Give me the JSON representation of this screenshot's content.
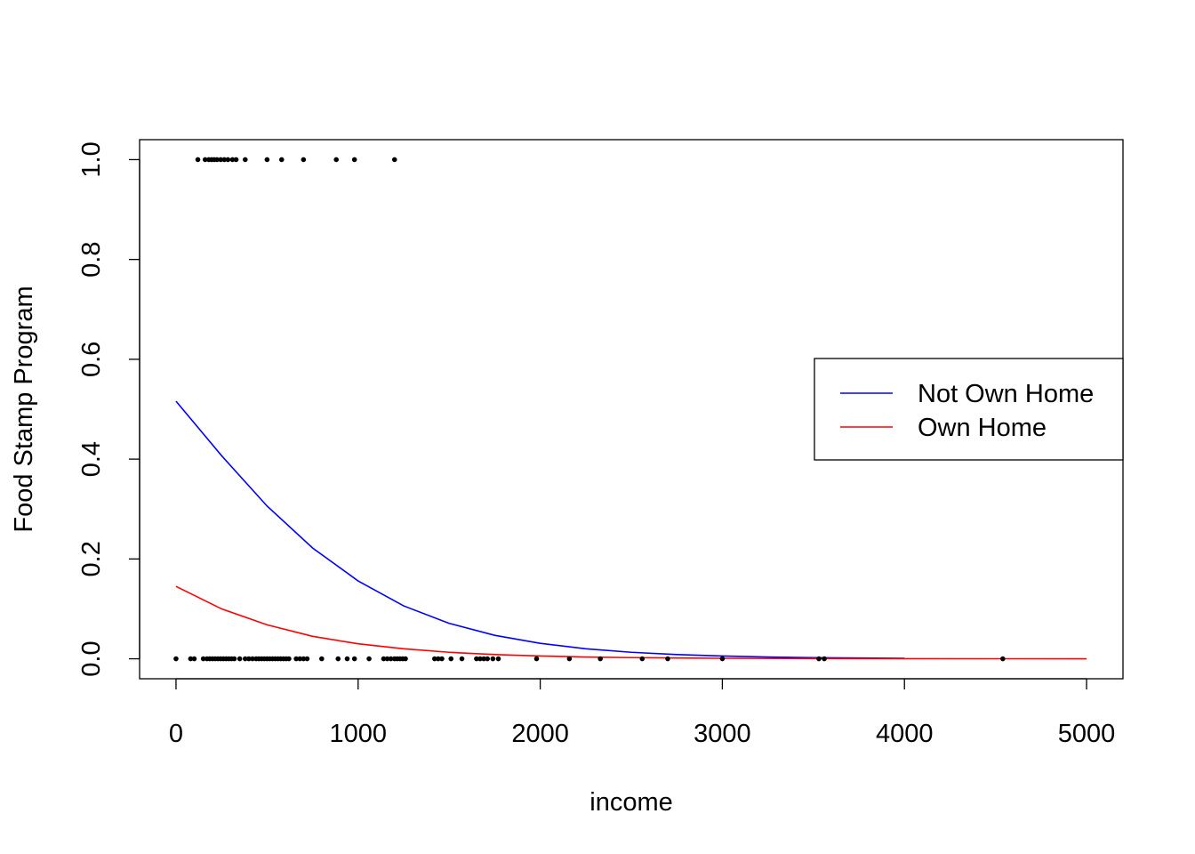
{
  "chart_data": {
    "type": "scatter",
    "title": "",
    "xlabel": "income",
    "ylabel": "Food Stamp Program",
    "xlim": [
      -200,
      5200
    ],
    "ylim": [
      -0.04,
      1.04
    ],
    "x_ticks": [
      0,
      1000,
      2000,
      3000,
      4000,
      5000
    ],
    "x_tick_labels": [
      "0",
      "1000",
      "2000",
      "3000",
      "4000",
      "5000"
    ],
    "y_ticks": [
      0.0,
      0.2,
      0.4,
      0.6,
      0.8,
      1.0
    ],
    "y_tick_labels": [
      "0.0",
      "0.2",
      "0.4",
      "0.6",
      "0.8",
      "1.0"
    ],
    "grid": false,
    "legend_position": "right",
    "points": {
      "color": "#000000",
      "x": [
        120,
        160,
        180,
        195,
        210,
        225,
        245,
        265,
        285,
        310,
        330,
        380,
        500,
        580,
        700,
        880,
        980,
        1200,
        0,
        80,
        100,
        150,
        170,
        185,
        200,
        215,
        230,
        245,
        260,
        275,
        290,
        305,
        320,
        350,
        380,
        400,
        420,
        440,
        455,
        470,
        485,
        500,
        515,
        530,
        545,
        560,
        575,
        590,
        605,
        620,
        660,
        680,
        700,
        720,
        800,
        890,
        940,
        980,
        1060,
        1140,
        1160,
        1180,
        1200,
        1215,
        1230,
        1245,
        1260,
        1420,
        1440,
        1460,
        1510,
        1570,
        1650,
        1670,
        1690,
        1710,
        1740,
        1770,
        1980,
        2160,
        2330,
        2560,
        2700,
        3000,
        3530,
        3560,
        4540
      ],
      "y": [
        1,
        1,
        1,
        1,
        1,
        1,
        1,
        1,
        1,
        1,
        1,
        1,
        1,
        1,
        1,
        1,
        1,
        1,
        0,
        0,
        0,
        0,
        0,
        0,
        0,
        0,
        0,
        0,
        0,
        0,
        0,
        0,
        0,
        0,
        0,
        0,
        0,
        0,
        0,
        0,
        0,
        0,
        0,
        0,
        0,
        0,
        0,
        0,
        0,
        0,
        0,
        0,
        0,
        0,
        0,
        0,
        0,
        0,
        0,
        0,
        0,
        0,
        0,
        0,
        0,
        0,
        0,
        0,
        0,
        0,
        0,
        0,
        0,
        0,
        0,
        0,
        0,
        0,
        0,
        0,
        0,
        0,
        0,
        0,
        0,
        0,
        0
      ]
    },
    "series": [
      {
        "name": "Not Own Home",
        "color": "#0000ff",
        "x": [
          0,
          250,
          500,
          750,
          1000,
          1250,
          1500,
          1750,
          2000,
          2250,
          2500,
          2750,
          3000,
          3250,
          3500,
          3750,
          4000
        ],
        "y": [
          0.516,
          0.407,
          0.306,
          0.222,
          0.156,
          0.106,
          0.071,
          0.047,
          0.031,
          0.02,
          0.013,
          0.0085,
          0.0055,
          0.0036,
          0.0023,
          0.0015,
          0.001
        ]
      },
      {
        "name": "Own Home",
        "color": "#ff0000",
        "x": [
          0,
          250,
          500,
          750,
          1000,
          1250,
          1500,
          1750,
          2000,
          2250,
          2500,
          2750,
          3000,
          3500,
          4000,
          4500,
          5000
        ],
        "y": [
          0.145,
          0.1,
          0.068,
          0.045,
          0.03,
          0.02,
          0.013,
          0.0085,
          0.0055,
          0.0035,
          0.0023,
          0.0015,
          0.001,
          0.0004,
          0.0002,
          0.0001,
          4e-05
        ]
      }
    ]
  }
}
